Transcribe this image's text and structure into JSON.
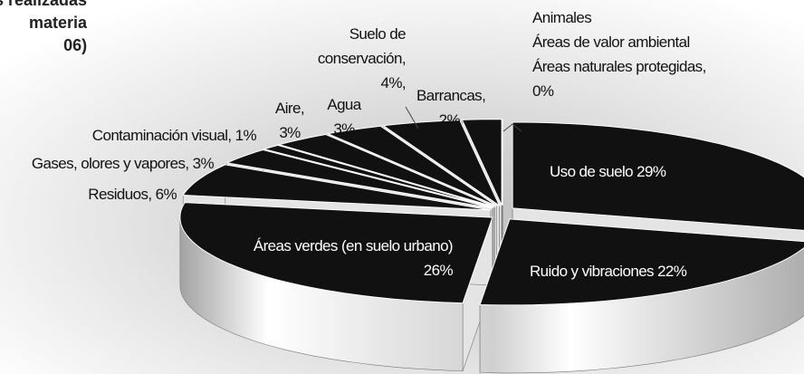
{
  "chart_data": {
    "type": "pie3d",
    "title_lines": [
      "s realizadas",
      "materia",
      "06)"
    ],
    "categories": [
      "Uso de suelo",
      "Ruido y vibraciones",
      "Áreas verdes (en suelo urbano)",
      "Residuos,",
      "Gases, olores y vapores,",
      "Contaminación visual,",
      "Aire,",
      "Agua",
      "Suelo de conservación,",
      "Barrancas,",
      "Animales",
      "Áreas de valor ambiental",
      "Áreas naturales protegidas,"
    ],
    "values": [
      29,
      22,
      26,
      6,
      3,
      1,
      3,
      3,
      4,
      2,
      0,
      0,
      0
    ],
    "value_labels": [
      "29%",
      "22%",
      "26%",
      "6%",
      "3%",
      "1%",
      "3%",
      "3%",
      "4%,",
      "2%",
      null,
      null,
      "0%"
    ],
    "color": "#111111"
  }
}
